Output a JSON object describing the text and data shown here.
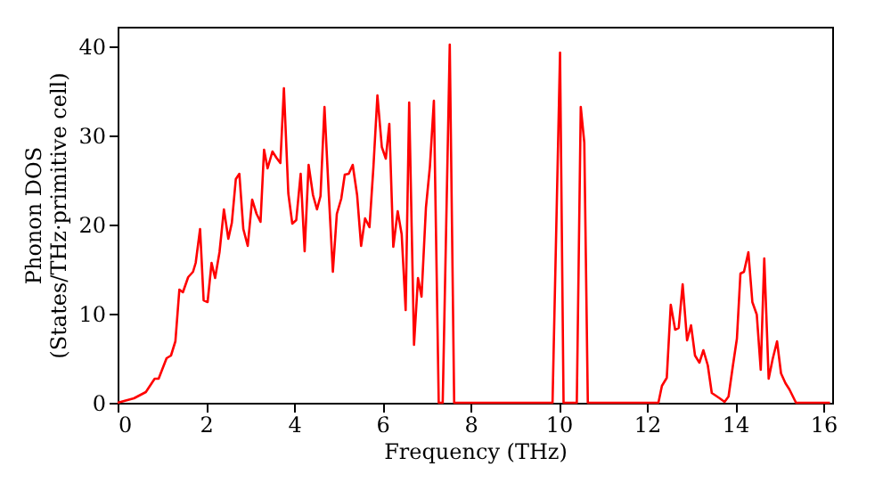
{
  "chart_data": {
    "type": "line",
    "xlabel": "Frequency (THz)",
    "ylabel": "Phonon DOS\n(States/THz·primitive cell)",
    "xlim": [
      0,
      16.2
    ],
    "xticks": [
      0,
      2,
      4,
      6,
      8,
      10,
      12,
      14,
      16
    ],
    "ylim": [
      0,
      42.2
    ],
    "yticks": [
      0,
      10,
      20,
      30,
      40
    ],
    "grid": false,
    "marker": "none",
    "line_style": "solid",
    "series": [
      {
        "color": "#ff0000",
        "x": [
          0,
          0.37,
          0.64,
          0.84,
          0.93,
          1.11,
          1.21,
          1.31,
          1.4,
          1.48,
          1.6,
          1.71,
          1.77,
          1.87,
          1.95,
          2.04,
          2.13,
          2.21,
          2.31,
          2.41,
          2.51,
          2.59,
          2.68,
          2.76,
          2.85,
          2.95,
          3.05,
          3.15,
          3.24,
          3.32,
          3.4,
          3.51,
          3.6,
          3.69,
          3.77,
          3.87,
          3.96,
          4.05,
          4.15,
          4.24,
          4.33,
          4.43,
          4.52,
          4.6,
          4.69,
          4.79,
          4.88,
          4.97,
          5.07,
          5.15,
          5.24,
          5.33,
          5.43,
          5.52,
          5.61,
          5.71,
          5.8,
          5.89,
          5.99,
          6.08,
          6.16,
          6.25,
          6.35,
          6.44,
          6.53,
          6.61,
          6.72,
          6.81,
          6.89,
          6.99,
          7.08,
          7.17,
          7.28,
          7.37,
          7.53,
          7.63,
          9.86,
          10.03,
          10.11,
          10.41,
          10.5,
          10.58,
          10.66,
          12.26,
          12.34,
          12.45,
          12.54,
          12.64,
          12.72,
          12.81,
          12.91,
          13.0,
          13.09,
          13.19,
          13.28,
          13.38,
          13.47,
          13.65,
          13.76,
          13.85,
          13.95,
          14.04,
          14.12,
          14.2,
          14.3,
          14.39,
          14.49,
          14.58,
          14.66,
          14.76,
          14.85,
          14.95,
          15.04,
          15.14,
          15.23,
          15.38,
          16.15
        ],
        "values": [
          0,
          0.5,
          1.2,
          2.7,
          2.7,
          5,
          5.3,
          6.9,
          12.7,
          12.4,
          14.1,
          14.7,
          15.7,
          19.5,
          11.5,
          11.3,
          15.7,
          14,
          16.9,
          21.7,
          18.4,
          20.2,
          25.1,
          25.7,
          19.5,
          17.6,
          22.8,
          21.2,
          20.3,
          28.4,
          26.3,
          28.2,
          27.5,
          26.9,
          35.3,
          23.5,
          20.1,
          20.5,
          25.7,
          17,
          26.7,
          23.3,
          21.7,
          23.2,
          33.2,
          23.2,
          14.7,
          21.2,
          22.9,
          25.6,
          25.7,
          26.7,
          23.3,
          17.6,
          20.7,
          19.7,
          26.5,
          34.5,
          28.7,
          27.4,
          31.3,
          17.5,
          21.5,
          18.9,
          10.4,
          33.7,
          6.5,
          14,
          11.9,
          21.9,
          26.5,
          33.9,
          0,
          0,
          40.2,
          0,
          0,
          39.3,
          0,
          0,
          33.2,
          29.2,
          0,
          0,
          1.9,
          2.8,
          11,
          8.2,
          8.4,
          13.3,
          7,
          8.7,
          5.3,
          4.5,
          5.9,
          4.2,
          1.1,
          0.5,
          0.1,
          0.7,
          4.2,
          7.2,
          14.5,
          14.7,
          16.9,
          11.3,
          9.9,
          3.7,
          16.2,
          2.7,
          4.9,
          6.9,
          3.3,
          2.2,
          1.5,
          0,
          0
        ]
      }
    ]
  }
}
